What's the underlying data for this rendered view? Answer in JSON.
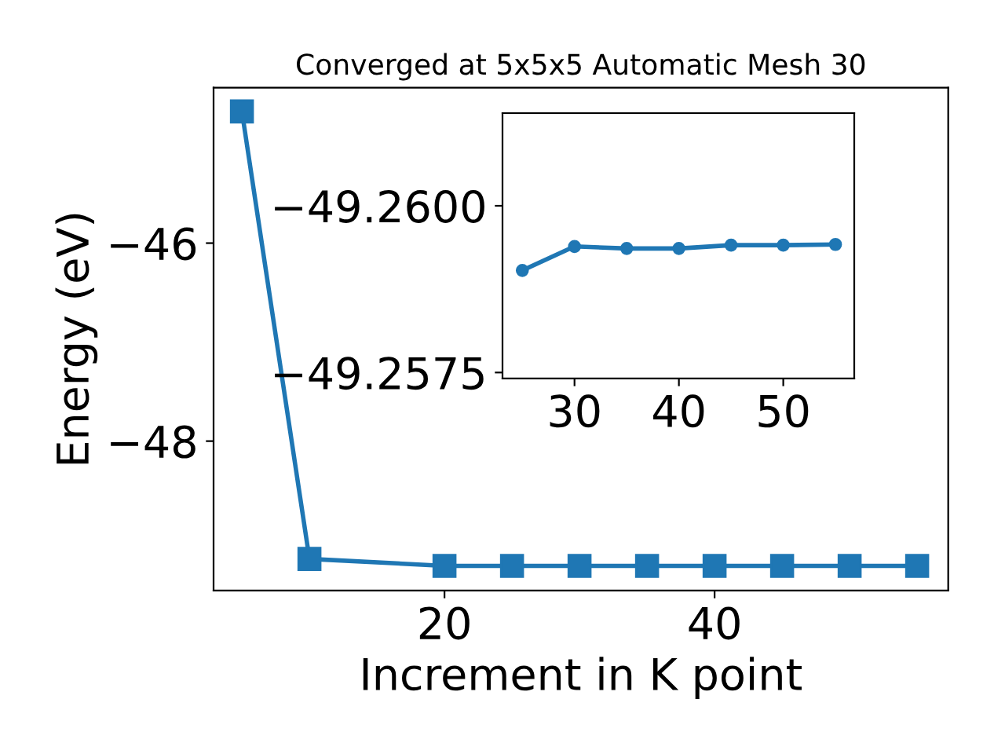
{
  "chart_data": [
    {
      "type": "line",
      "title": "Converged at 5x5x5 Automatic Mesh 30",
      "xlabel": "Increment in K point",
      "ylabel": "Energy (eV)",
      "x": [
        5,
        10,
        20,
        25,
        30,
        35,
        40,
        45,
        50,
        55
      ],
      "series": [
        {
          "color": "#1f77b4",
          "values": [
            -44.67,
            -49.19,
            -49.26,
            -49.26,
            -49.26,
            -49.26,
            -49.26,
            -49.26,
            -49.26,
            -49.26
          ]
        }
      ],
      "marker": "square",
      "line_style": "solid",
      "grid": false,
      "xlim": [
        2.9,
        57.3
      ],
      "ylim": [
        -49.51,
        -44.43
      ],
      "xticks": [
        20,
        40
      ],
      "yticks": [
        {
          "value": -46,
          "label": "−46"
        },
        {
          "value": -48,
          "label": "−48"
        }
      ]
    },
    {
      "type": "line",
      "x": [
        25,
        30,
        35,
        40,
        45,
        50,
        55
      ],
      "series": [
        {
          "color": "#1f77b4",
          "values": [
            -49.25903,
            -49.25939,
            -49.25936,
            -49.25936,
            -49.25941,
            -49.25941,
            -49.25942
          ]
        }
      ],
      "marker": "circle",
      "line_style": "solid",
      "grid": false,
      "xlim": [
        23.1,
        56.8
      ],
      "ylim": [
        -49.25741,
        -49.26139
      ],
      "xticks": [
        30,
        40,
        50
      ],
      "yticks": [
        {
          "value": -49.26,
          "label": "−49.2600"
        },
        {
          "value": -49.2575,
          "label": "−49.2575"
        }
      ]
    }
  ]
}
